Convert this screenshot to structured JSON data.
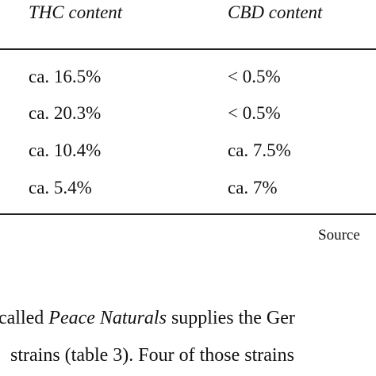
{
  "table": {
    "headers": {
      "thc": "THC content",
      "cbd": "CBD content"
    },
    "rows": [
      {
        "thc": "ca. 16.5%",
        "cbd": "< 0.5%"
      },
      {
        "thc": "ca. 20.3%",
        "cbd": "< 0.5%"
      },
      {
        "thc": "ca. 10.4%",
        "cbd": "ca. 7.5%"
      },
      {
        "thc": "ca. 5.4%",
        "cbd": "ca. 7%"
      }
    ]
  },
  "source_label": "Source",
  "body": {
    "line1": {
      "pre": "called ",
      "italic": "Peace Naturals",
      "post": " supplies the Ger"
    },
    "line2": "strains (table 3). Four of those strains"
  }
}
